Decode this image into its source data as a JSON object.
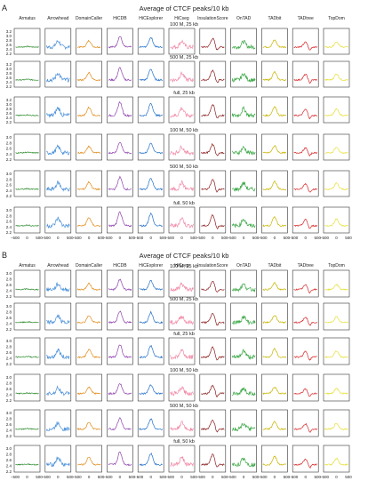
{
  "chart_data": [
    {
      "type": "line",
      "panel_label": "A",
      "title": "Average of CTCF peaks/10 kb",
      "columns": [
        "Armatus",
        "Arrowhead",
        "DomainCaller",
        "HiCDB",
        "HiCExplorer",
        "HiCseg",
        "InsulationScore",
        "OnTAD",
        "TADbit",
        "TADtree",
        "TopDom"
      ],
      "column_colors": [
        "#2e8b2e",
        "#4a90d9",
        "#e08c1a",
        "#8e44ad",
        "#2471c8",
        "#f08ca8",
        "#8b1e1e",
        "#3aa845",
        "#c8b400",
        "#d62728",
        "#e8e03a"
      ],
      "rows": [
        "100 M, 25 kb",
        "500 M, 25 kb",
        "full, 25 kb",
        "100 M, 50 kb",
        "500 M, 50 kb",
        "full, 50 kb"
      ],
      "row_yticks": [
        [
          "3.2",
          "3.0",
          "2.8",
          "2.6",
          "2.4",
          "2.2"
        ],
        [
          "3.2",
          "3.0",
          "2.8",
          "2.6",
          "2.4",
          "2.2"
        ],
        [
          "3.2",
          "3.0",
          "2.8",
          "2.6",
          "2.4",
          "2.2"
        ],
        [
          "3.0",
          "2.8",
          "2.6",
          "2.4",
          "2.2"
        ],
        [
          "3.0",
          "2.8",
          "2.6",
          "2.4",
          "2.2"
        ],
        [
          "3.0",
          "2.8",
          "2.6",
          "2.4",
          "2.2"
        ]
      ],
      "xticks": [
        "−500",
        "0",
        "500"
      ],
      "xlim": [
        -500,
        500
      ]
    },
    {
      "type": "line",
      "panel_label": "B",
      "title": "Average of CTCF peaks/10 kb",
      "columns": [
        "Armatus",
        "Arrowhead",
        "DomainCaller",
        "HiCDB",
        "HiCExplorer",
        "HiCseg",
        "InsulationScore",
        "OnTAD",
        "TADbit",
        "TADtree",
        "TopDom"
      ],
      "column_colors": [
        "#2e8b2e",
        "#4a90d9",
        "#e08c1a",
        "#8e44ad",
        "#2471c8",
        "#f08ca8",
        "#8b1e1e",
        "#3aa845",
        "#c8b400",
        "#d62728",
        "#e8e03a"
      ],
      "rows": [
        "100 M, 25 kb",
        "500 M, 25 kb",
        "full, 25 kb",
        "100 M, 50 kb",
        "500 M, 50 kb",
        "full, 50 kb"
      ],
      "row_yticks": [
        [
          "3.0",
          "2.8",
          "2.6",
          "2.4",
          "2.2"
        ],
        [
          "3.0",
          "2.8",
          "2.6",
          "2.4",
          "2.2"
        ],
        [
          "3.0",
          "2.8",
          "2.6",
          "2.4",
          "2.2"
        ],
        [
          "3.0",
          "2.8",
          "2.6",
          "2.4",
          "2.2"
        ],
        [
          "3.0",
          "2.8",
          "2.6",
          "2.4",
          "2.2"
        ],
        [
          "3.0",
          "2.8",
          "2.6",
          "2.4",
          "2.2"
        ]
      ],
      "xticks": [
        "−500",
        "0",
        "500"
      ],
      "xlim": [
        -500,
        500
      ]
    }
  ]
}
